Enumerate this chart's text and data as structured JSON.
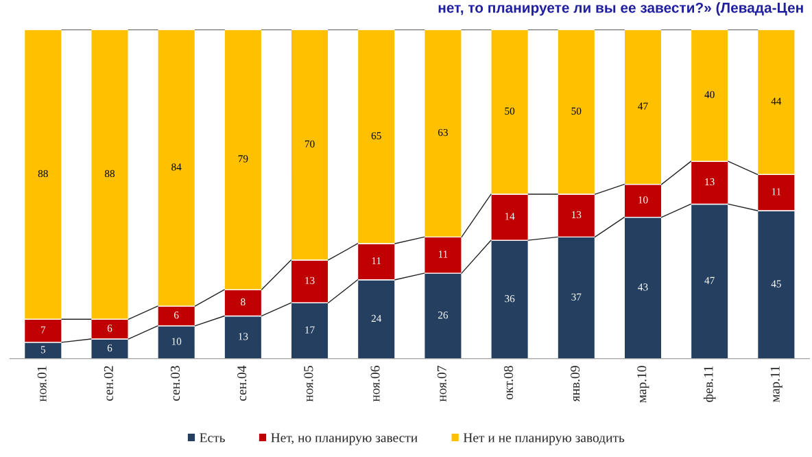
{
  "chart_data": {
    "type": "bar",
    "stacked": true,
    "data_labels": true,
    "legend": "bottom",
    "title": "нет, то планируете ли вы ее завести?» (Левада-Цен",
    "categories": [
      "ноя.01",
      "сен.02",
      "сен.03",
      "сен.04",
      "ноя.05",
      "ноя.06",
      "ноя.07",
      "окт.08",
      "янв.09",
      "мар.10",
      "фев.11",
      "мар.11"
    ],
    "series": [
      {
        "name": "Есть",
        "color": "#243f60",
        "values": [
          5,
          6,
          10,
          13,
          17,
          24,
          26,
          36,
          37,
          43,
          47,
          45
        ]
      },
      {
        "name": "Нет, но планирую завести",
        "color": "#c00000",
        "values": [
          7,
          6,
          6,
          8,
          13,
          11,
          11,
          14,
          13,
          10,
          13,
          11
        ]
      },
      {
        "name": "Нет и не планирую заводить",
        "color": "#ffc000",
        "values": [
          88,
          88,
          84,
          79,
          70,
          65,
          63,
          50,
          50,
          47,
          40,
          44
        ]
      }
    ]
  }
}
